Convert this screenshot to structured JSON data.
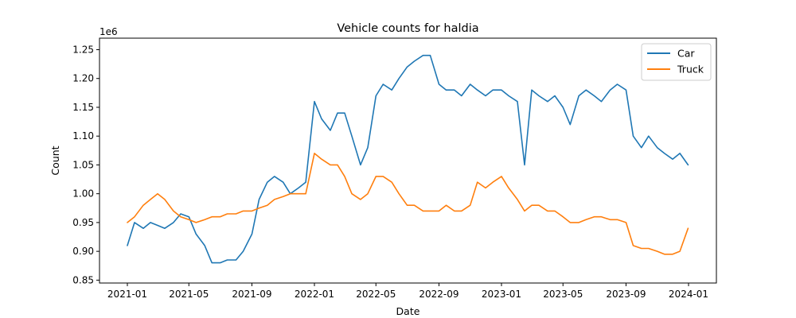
{
  "chart_data": {
    "type": "line",
    "title": "Vehicle counts for haldia",
    "xlabel": "Date",
    "ylabel": "Count",
    "y_offset_label": "1e6",
    "xlim": [
      "2021-01-01",
      "2024-01-01"
    ],
    "ylim": [
      0.845,
      1.27
    ],
    "y_ticks": [
      0.85,
      0.9,
      0.95,
      1.0,
      1.05,
      1.1,
      1.15,
      1.2,
      1.25
    ],
    "y_tick_labels": [
      "0.85",
      "0.90",
      "0.95",
      "1.00",
      "1.05",
      "1.10",
      "1.15",
      "1.20",
      "1.25"
    ],
    "x_ticks": [
      "2021-01-01",
      "2021-05-01",
      "2021-09-01",
      "2022-01-01",
      "2022-05-01",
      "2022-09-01",
      "2023-01-01",
      "2023-05-01",
      "2023-09-01",
      "2024-01-01"
    ],
    "x_tick_labels": [
      "2021-01",
      "2021-05",
      "2021-09",
      "2022-01",
      "2022-05",
      "2022-09",
      "2023-01",
      "2023-05",
      "2023-09",
      "2024-01"
    ],
    "grid": false,
    "legend_position": "top-right",
    "series": [
      {
        "name": "Car",
        "color": "#1f77b4",
        "points": [
          [
            "2021-01-01",
            0.91
          ],
          [
            "2021-01-15",
            0.95
          ],
          [
            "2021-02-01",
            0.94
          ],
          [
            "2021-02-15",
            0.95
          ],
          [
            "2021-03-01",
            0.945
          ],
          [
            "2021-03-15",
            0.94
          ],
          [
            "2021-04-01",
            0.95
          ],
          [
            "2021-04-15",
            0.965
          ],
          [
            "2021-05-01",
            0.96
          ],
          [
            "2021-05-15",
            0.93
          ],
          [
            "2021-06-01",
            0.91
          ],
          [
            "2021-06-15",
            0.88
          ],
          [
            "2021-07-01",
            0.88
          ],
          [
            "2021-07-15",
            0.885
          ],
          [
            "2021-08-01",
            0.885
          ],
          [
            "2021-08-15",
            0.9
          ],
          [
            "2021-09-01",
            0.93
          ],
          [
            "2021-09-15",
            0.99
          ],
          [
            "2021-10-01",
            1.02
          ],
          [
            "2021-10-15",
            1.03
          ],
          [
            "2021-11-01",
            1.02
          ],
          [
            "2021-11-15",
            1.0
          ],
          [
            "2021-12-01",
            1.01
          ],
          [
            "2021-12-15",
            1.02
          ],
          [
            "2022-01-01",
            1.16
          ],
          [
            "2022-01-15",
            1.13
          ],
          [
            "2022-02-01",
            1.11
          ],
          [
            "2022-02-15",
            1.14
          ],
          [
            "2022-03-01",
            1.14
          ],
          [
            "2022-03-15",
            1.1
          ],
          [
            "2022-04-01",
            1.05
          ],
          [
            "2022-04-15",
            1.08
          ],
          [
            "2022-05-01",
            1.17
          ],
          [
            "2022-05-15",
            1.19
          ],
          [
            "2022-06-01",
            1.18
          ],
          [
            "2022-06-15",
            1.2
          ],
          [
            "2022-07-01",
            1.22
          ],
          [
            "2022-07-15",
            1.23
          ],
          [
            "2022-08-01",
            1.24
          ],
          [
            "2022-08-15",
            1.24
          ],
          [
            "2022-09-01",
            1.19
          ],
          [
            "2022-09-15",
            1.18
          ],
          [
            "2022-10-01",
            1.18
          ],
          [
            "2022-10-15",
            1.17
          ],
          [
            "2022-11-01",
            1.19
          ],
          [
            "2022-11-15",
            1.18
          ],
          [
            "2022-12-01",
            1.17
          ],
          [
            "2022-12-15",
            1.18
          ],
          [
            "2023-01-01",
            1.18
          ],
          [
            "2023-01-15",
            1.17
          ],
          [
            "2023-02-01",
            1.16
          ],
          [
            "2023-02-15",
            1.05
          ],
          [
            "2023-03-01",
            1.18
          ],
          [
            "2023-03-15",
            1.17
          ],
          [
            "2023-04-01",
            1.16
          ],
          [
            "2023-04-15",
            1.17
          ],
          [
            "2023-05-01",
            1.15
          ],
          [
            "2023-05-15",
            1.12
          ],
          [
            "2023-06-01",
            1.17
          ],
          [
            "2023-06-15",
            1.18
          ],
          [
            "2023-07-01",
            1.17
          ],
          [
            "2023-07-15",
            1.16
          ],
          [
            "2023-08-01",
            1.18
          ],
          [
            "2023-08-15",
            1.19
          ],
          [
            "2023-09-01",
            1.18
          ],
          [
            "2023-09-15",
            1.1
          ],
          [
            "2023-10-01",
            1.08
          ],
          [
            "2023-10-15",
            1.1
          ],
          [
            "2023-11-01",
            1.08
          ],
          [
            "2023-11-15",
            1.07
          ],
          [
            "2023-12-01",
            1.06
          ],
          [
            "2023-12-15",
            1.07
          ],
          [
            "2023-12-31",
            1.05
          ]
        ]
      },
      {
        "name": "Truck",
        "color": "#ff7f0e",
        "points": [
          [
            "2021-01-01",
            0.95
          ],
          [
            "2021-01-15",
            0.96
          ],
          [
            "2021-02-01",
            0.98
          ],
          [
            "2021-02-15",
            0.99
          ],
          [
            "2021-03-01",
            1.0
          ],
          [
            "2021-03-15",
            0.99
          ],
          [
            "2021-04-01",
            0.97
          ],
          [
            "2021-04-15",
            0.96
          ],
          [
            "2021-05-01",
            0.955
          ],
          [
            "2021-05-15",
            0.95
          ],
          [
            "2021-06-01",
            0.955
          ],
          [
            "2021-06-15",
            0.96
          ],
          [
            "2021-07-01",
            0.96
          ],
          [
            "2021-07-15",
            0.965
          ],
          [
            "2021-08-01",
            0.965
          ],
          [
            "2021-08-15",
            0.97
          ],
          [
            "2021-09-01",
            0.97
          ],
          [
            "2021-09-15",
            0.975
          ],
          [
            "2021-10-01",
            0.98
          ],
          [
            "2021-10-15",
            0.99
          ],
          [
            "2021-11-01",
            0.995
          ],
          [
            "2021-11-15",
            1.0
          ],
          [
            "2021-12-01",
            1.0
          ],
          [
            "2021-12-15",
            1.0
          ],
          [
            "2022-01-01",
            1.07
          ],
          [
            "2022-01-15",
            1.06
          ],
          [
            "2022-02-01",
            1.05
          ],
          [
            "2022-02-15",
            1.05
          ],
          [
            "2022-03-01",
            1.03
          ],
          [
            "2022-03-15",
            1.0
          ],
          [
            "2022-04-01",
            0.99
          ],
          [
            "2022-04-15",
            1.0
          ],
          [
            "2022-05-01",
            1.03
          ],
          [
            "2022-05-15",
            1.03
          ],
          [
            "2022-06-01",
            1.02
          ],
          [
            "2022-06-15",
            1.0
          ],
          [
            "2022-07-01",
            0.98
          ],
          [
            "2022-07-15",
            0.98
          ],
          [
            "2022-08-01",
            0.97
          ],
          [
            "2022-08-15",
            0.97
          ],
          [
            "2022-09-01",
            0.97
          ],
          [
            "2022-09-15",
            0.98
          ],
          [
            "2022-10-01",
            0.97
          ],
          [
            "2022-10-15",
            0.97
          ],
          [
            "2022-11-01",
            0.98
          ],
          [
            "2022-11-15",
            1.02
          ],
          [
            "2022-12-01",
            1.01
          ],
          [
            "2022-12-15",
            1.02
          ],
          [
            "2023-01-01",
            1.03
          ],
          [
            "2023-01-15",
            1.01
          ],
          [
            "2023-02-01",
            0.99
          ],
          [
            "2023-02-15",
            0.97
          ],
          [
            "2023-03-01",
            0.98
          ],
          [
            "2023-03-15",
            0.98
          ],
          [
            "2023-04-01",
            0.97
          ],
          [
            "2023-04-15",
            0.97
          ],
          [
            "2023-05-01",
            0.96
          ],
          [
            "2023-05-15",
            0.95
          ],
          [
            "2023-06-01",
            0.95
          ],
          [
            "2023-06-15",
            0.955
          ],
          [
            "2023-07-01",
            0.96
          ],
          [
            "2023-07-15",
            0.96
          ],
          [
            "2023-08-01",
            0.955
          ],
          [
            "2023-08-15",
            0.955
          ],
          [
            "2023-09-01",
            0.95
          ],
          [
            "2023-09-15",
            0.91
          ],
          [
            "2023-10-01",
            0.905
          ],
          [
            "2023-10-15",
            0.905
          ],
          [
            "2023-11-01",
            0.9
          ],
          [
            "2023-11-15",
            0.895
          ],
          [
            "2023-12-01",
            0.895
          ],
          [
            "2023-12-15",
            0.9
          ],
          [
            "2023-12-31",
            0.94
          ]
        ]
      }
    ]
  }
}
